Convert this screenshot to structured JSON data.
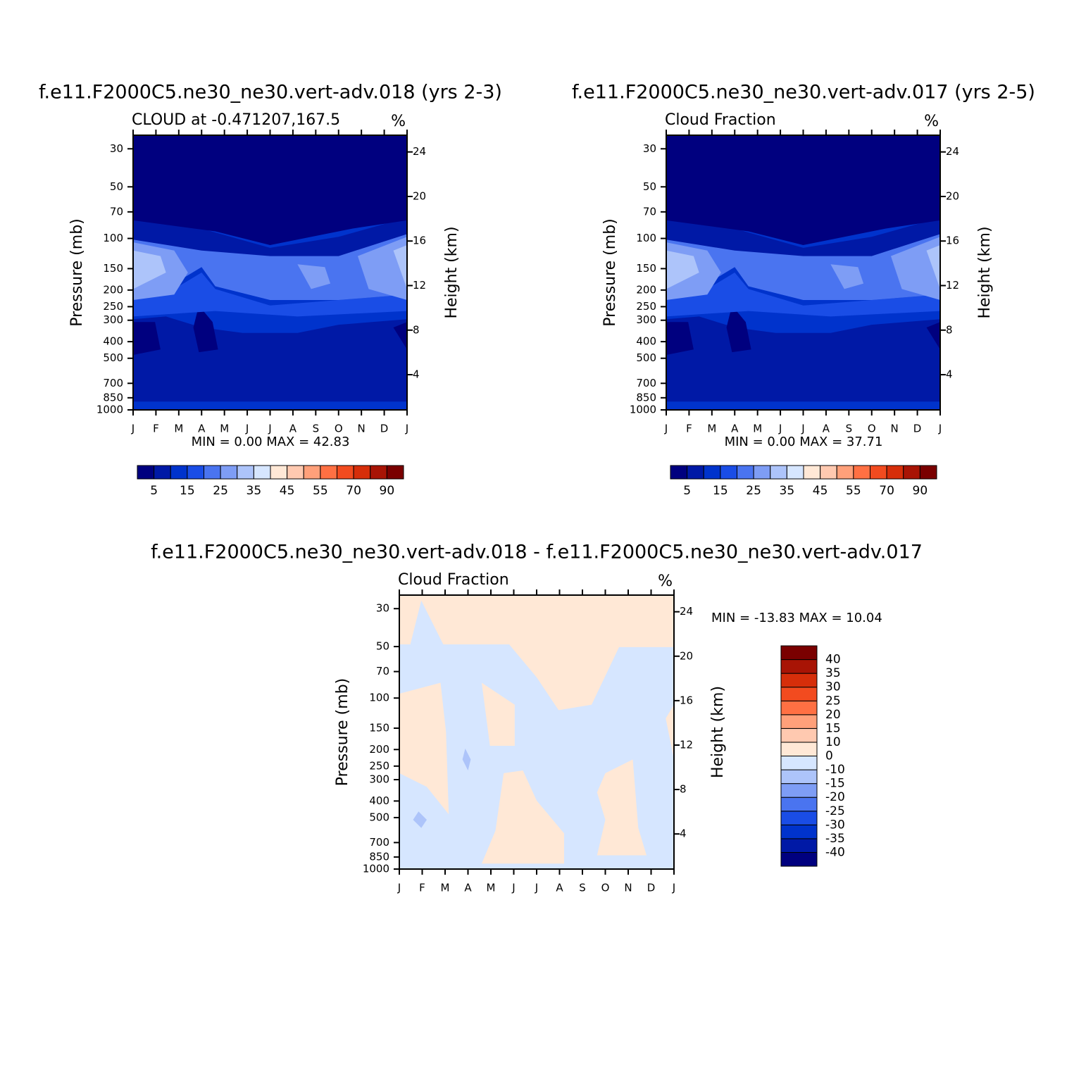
{
  "chart_data": [
    {
      "type": "contour",
      "title": "f.e11.F2000C5.ne30_ne30.vert-adv.018 (yrs 2-3)",
      "subtitle": "CLOUD at -0.471207,167.5",
      "units": "%",
      "ylabel": "Pressure (mb)",
      "y2label": "Height (km)",
      "stats": "MIN =    0.00 MAX =   42.83",
      "categories": [
        "J",
        "F",
        "M",
        "A",
        "M",
        "J",
        "J",
        "A",
        "S",
        "O",
        "N",
        "D",
        "J"
      ],
      "ylog": true,
      "ylim": [
        1000,
        25
      ],
      "yticks": [
        30,
        50,
        70,
        100,
        150,
        200,
        250,
        300,
        400,
        500,
        700,
        850,
        1000
      ],
      "y2lim": [
        0.84,
        25.5
      ],
      "y2ticks": [
        4,
        8,
        12,
        16,
        20,
        24
      ],
      "colorbar_levels": [
        5,
        null,
        15,
        null,
        25,
        null,
        35,
        null,
        45,
        null,
        55,
        null,
        70,
        null,
        90
      ],
      "colors": [
        "#00007f",
        "#0019a6",
        "#0033cc",
        "#1a4de6",
        "#4a74f0",
        "#7e9df5",
        "#adc4fa",
        "#d6e6ff",
        "#ffe8d6",
        "#ffc9b0",
        "#ffa07a",
        "#ff7043",
        "#f24b1f",
        "#d62e0a",
        "#a81405",
        "#7a0000"
      ]
    },
    {
      "type": "contour",
      "title": "f.e11.F2000C5.ne30_ne30.vert-adv.017 (yrs 2-5)",
      "subtitle": "Cloud Fraction",
      "units": "%",
      "ylabel": "Pressure (mb)",
      "y2label": "Height (km)",
      "stats": "MIN =    0.00 MAX =   37.71",
      "categories": [
        "J",
        "F",
        "M",
        "A",
        "M",
        "J",
        "J",
        "A",
        "S",
        "O",
        "N",
        "D",
        "J"
      ],
      "ylog": true,
      "ylim": [
        1000,
        25
      ],
      "yticks": [
        30,
        50,
        70,
        100,
        150,
        200,
        250,
        300,
        400,
        500,
        700,
        850,
        1000
      ],
      "y2lim": [
        0.84,
        25.5
      ],
      "y2ticks": [
        4,
        8,
        12,
        16,
        20,
        24
      ],
      "colorbar_levels": [
        5,
        null,
        15,
        null,
        25,
        null,
        35,
        null,
        45,
        null,
        55,
        null,
        70,
        null,
        90
      ],
      "colors": [
        "#00007f",
        "#0019a6",
        "#0033cc",
        "#1a4de6",
        "#4a74f0",
        "#7e9df5",
        "#adc4fa",
        "#d6e6ff",
        "#ffe8d6",
        "#ffc9b0",
        "#ffa07a",
        "#ff7043",
        "#f24b1f",
        "#d62e0a",
        "#a81405",
        "#7a0000"
      ]
    },
    {
      "type": "contour",
      "title": "f.e11.F2000C5.ne30_ne30.vert-adv.018 - f.e11.F2000C5.ne30_ne30.vert-adv.017",
      "subtitle": "Cloud Fraction",
      "units": "%",
      "ylabel": "Pressure (mb)",
      "y2label": "Height (km)",
      "stats": "MIN = -13.83 MAX =   10.04",
      "categories": [
        "J",
        "F",
        "M",
        "A",
        "M",
        "J",
        "J",
        "A",
        "S",
        "O",
        "N",
        "D",
        "J"
      ],
      "ylog": true,
      "ylim": [
        1000,
        25
      ],
      "yticks": [
        30,
        50,
        70,
        100,
        150,
        200,
        250,
        300,
        400,
        500,
        700,
        850,
        1000
      ],
      "y2lim": [
        0.84,
        25.5
      ],
      "y2ticks": [
        4,
        8,
        12,
        16,
        20,
        24
      ],
      "colorbar_levels": [
        -40,
        -35,
        -30,
        -25,
        -20,
        -15,
        -10,
        0,
        10,
        15,
        20,
        25,
        30,
        35,
        40
      ],
      "colors": [
        "#00007f",
        "#0019a6",
        "#0033cc",
        "#1a4de6",
        "#4a74f0",
        "#7e9df5",
        "#adc4fa",
        "#d6e6ff",
        "#ffe8d6",
        "#ffc9b0",
        "#ffa07a",
        "#ff7043",
        "#f24b1f",
        "#d62e0a",
        "#a81405",
        "#7a0000"
      ]
    }
  ]
}
